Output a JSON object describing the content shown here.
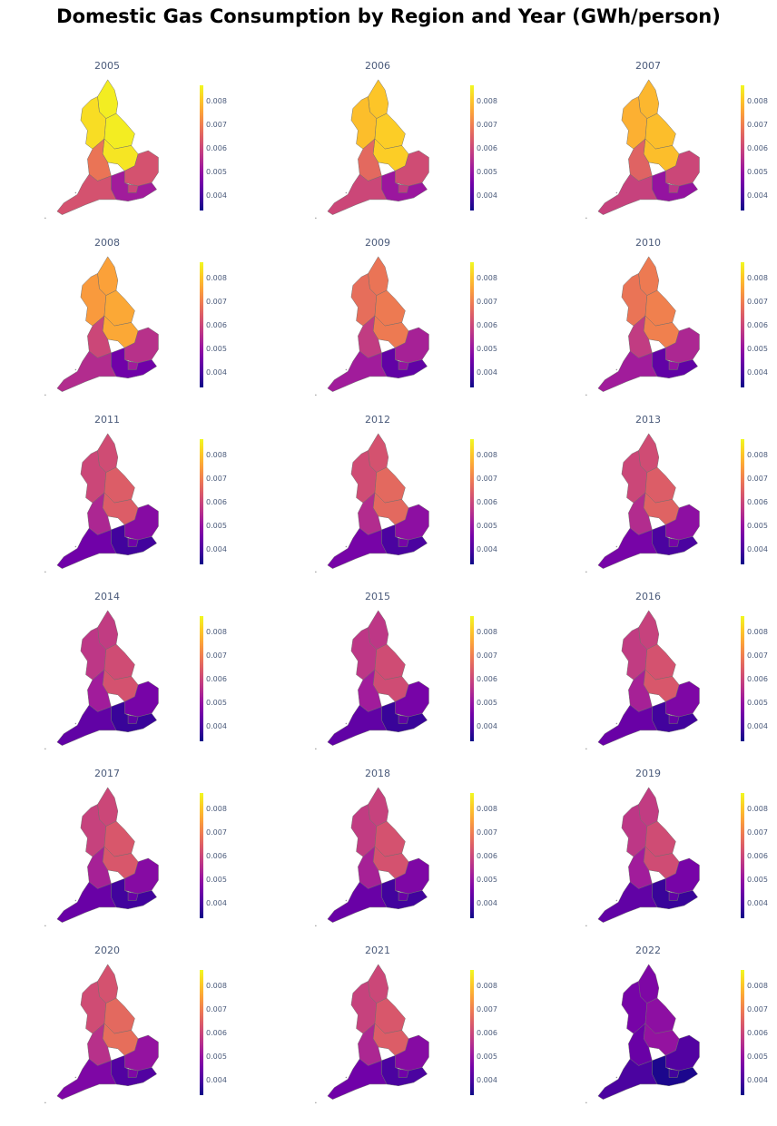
{
  "title": "Domestic Gas Consumption by Region and Year (GWh/person)",
  "chart_data": {
    "type": "heatmap",
    "subtype": "choropleth-small-multiples",
    "title": "Domestic Gas Consumption by Region and Year (GWh/person)",
    "colorscale": "plasma",
    "color_range": [
      0.00335,
      0.00865
    ],
    "colorbar_ticks": [
      "0.004",
      "0.005",
      "0.006",
      "0.007",
      "0.008"
    ],
    "colorbar_tick_values": [
      0.004,
      0.005,
      0.006,
      0.007,
      0.008
    ],
    "region_order": [
      "North East",
      "North West",
      "Yorkshire and the Humber",
      "East Midlands",
      "West Midlands",
      "East of England",
      "London",
      "South East",
      "South West"
    ],
    "panels": [
      {
        "year": "2005",
        "values": [
          0.0085,
          0.0083,
          0.0085,
          0.0084,
          0.0068,
          0.0062,
          0.006,
          0.0052,
          0.0062
        ]
      },
      {
        "year": "2006",
        "values": [
          0.008,
          0.0079,
          0.0081,
          0.0081,
          0.0066,
          0.0061,
          0.0058,
          0.0051,
          0.006
        ]
      },
      {
        "year": "2007",
        "values": [
          0.0078,
          0.0077,
          0.0079,
          0.0079,
          0.0065,
          0.006,
          0.0057,
          0.005,
          0.0059
        ]
      },
      {
        "year": "2008",
        "values": [
          0.0075,
          0.0074,
          0.0076,
          0.0076,
          0.006,
          0.0056,
          0.0052,
          0.0045,
          0.0055
        ]
      },
      {
        "year": "2009",
        "values": [
          0.0068,
          0.0067,
          0.0069,
          0.0069,
          0.0058,
          0.0053,
          0.005,
          0.0043,
          0.0052
        ]
      },
      {
        "year": "2010",
        "values": [
          0.0069,
          0.0068,
          0.007,
          0.007,
          0.0058,
          0.0054,
          0.005,
          0.0043,
          0.0052
        ]
      },
      {
        "year": "2011",
        "values": [
          0.0061,
          0.006,
          0.0064,
          0.0064,
          0.0054,
          0.0048,
          0.0045,
          0.0039,
          0.0045
        ]
      },
      {
        "year": "2012",
        "values": [
          0.0062,
          0.0061,
          0.0066,
          0.0066,
          0.0055,
          0.0049,
          0.0046,
          0.004,
          0.0046
        ]
      },
      {
        "year": "2013",
        "values": [
          0.0061,
          0.006,
          0.0064,
          0.0065,
          0.0055,
          0.0049,
          0.0046,
          0.004,
          0.0046
        ]
      },
      {
        "year": "2014",
        "values": [
          0.0058,
          0.0057,
          0.0061,
          0.0062,
          0.0052,
          0.0046,
          0.0043,
          0.0038,
          0.0043
        ]
      },
      {
        "year": "2015",
        "values": [
          0.0057,
          0.0057,
          0.0061,
          0.0061,
          0.0052,
          0.0046,
          0.0043,
          0.0038,
          0.0043
        ]
      },
      {
        "year": "2016",
        "values": [
          0.0059,
          0.0058,
          0.0062,
          0.0063,
          0.0053,
          0.0047,
          0.0044,
          0.0039,
          0.0044
        ]
      },
      {
        "year": "2017",
        "values": [
          0.006,
          0.0059,
          0.0063,
          0.0063,
          0.0053,
          0.0048,
          0.0044,
          0.0039,
          0.0044
        ]
      },
      {
        "year": "2018",
        "values": [
          0.0059,
          0.0058,
          0.0062,
          0.0062,
          0.0053,
          0.0047,
          0.0044,
          0.0039,
          0.0044
        ]
      },
      {
        "year": "2019",
        "values": [
          0.0058,
          0.0057,
          0.0061,
          0.0061,
          0.0052,
          0.0046,
          0.0043,
          0.0038,
          0.0043
        ]
      },
      {
        "year": "2020",
        "values": [
          0.0062,
          0.0061,
          0.0066,
          0.0067,
          0.0056,
          0.005,
          0.0047,
          0.0041,
          0.0047
        ]
      },
      {
        "year": "2021",
        "values": [
          0.006,
          0.0059,
          0.0063,
          0.0064,
          0.0054,
          0.0048,
          0.0045,
          0.004,
          0.0045
        ]
      },
      {
        "year": "2022",
        "values": [
          0.0047,
          0.0046,
          0.0049,
          0.005,
          0.0044,
          0.0041,
          0.0039,
          0.0035,
          0.004
        ]
      }
    ]
  }
}
